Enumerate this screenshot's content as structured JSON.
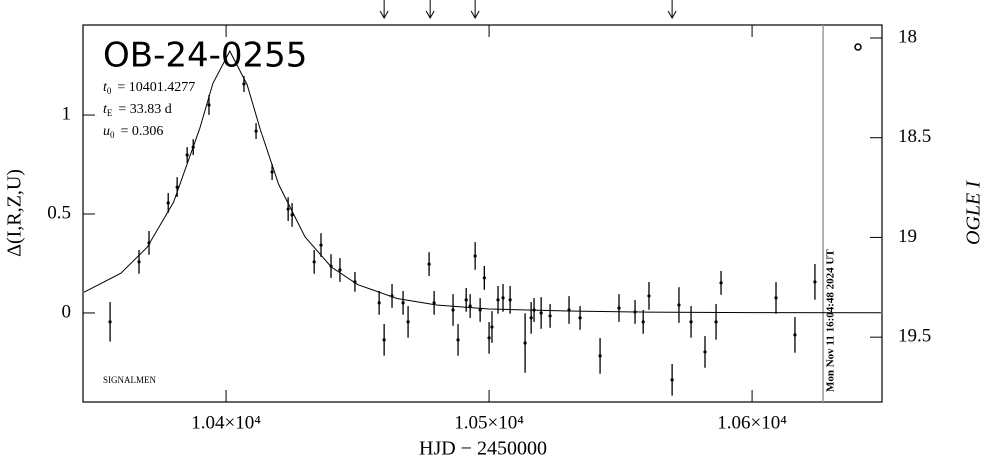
{
  "chart_data": {
    "type": "scatter",
    "title": "OB-24-0255",
    "params": [
      {
        "name": "t",
        "sub": "0",
        "text": "= 10401.4277"
      },
      {
        "name": "t",
        "sub": "E",
        "text": "= 33.83 d"
      },
      {
        "name": "u",
        "sub": "0",
        "text": "= 0.306"
      }
    ],
    "credit": "SIGNALMEN",
    "timestamp": "Mon Nov 11 16:04:48 2024 UT",
    "timestamp_x": 10627.0,
    "x_label": "HJD − 2450000",
    "y_label": "Δ(I,R,Z,U)",
    "y2_label": "OGLE I",
    "xlim": [
      10345.6,
      10649.4
    ],
    "ylim": [
      -0.45,
      1.455
    ],
    "y2lim": [
      19.825,
      17.935
    ],
    "xticks": [
      {
        "value": 10400,
        "label": "1.04×10⁴"
      },
      {
        "value": 10500,
        "label": "1.05×10⁴"
      },
      {
        "value": 10600,
        "label": "1.06×10⁴"
      }
    ],
    "yticks": [
      0,
      0.5,
      1
    ],
    "y2ticks": [
      18,
      18.5,
      19,
      19.5
    ],
    "arrows": [
      10460.1,
      10477.6,
      10494.7,
      10569.6
    ],
    "model": {
      "color": "#000000",
      "x": [
        10346,
        10360,
        10370,
        10380,
        10390,
        10395,
        10401.43,
        10408,
        10413,
        10420,
        10430,
        10440,
        10450,
        10465,
        10480,
        10500,
        10530,
        10560,
        10600,
        10649
      ],
      "values": [
        0.105,
        0.201,
        0.332,
        0.559,
        0.933,
        1.16,
        1.323,
        1.154,
        0.927,
        0.649,
        0.385,
        0.232,
        0.143,
        0.073,
        0.04,
        0.02,
        0.01,
        0.0045,
        0.0018,
        0.0008
      ]
    },
    "series": [
      {
        "color": "#000000",
        "x": [
          10355.9,
          10366.9,
          10370.7,
          10378.0,
          10381.4,
          10385.2,
          10387.5,
          10393.5,
          10406.8,
          10411.4,
          10417.5,
          10423.6,
          10425.1,
          10433.5,
          10436.1,
          10439.9,
          10443.3,
          10449.0,
          10458.2,
          10460.1,
          10463.1,
          10467.3,
          10469.2,
          10477.2,
          10479.1,
          10486.3,
          10488.2,
          10491.3,
          10492.8,
          10494.7,
          10496.6,
          10498.2,
          10500.0,
          10501.1,
          10503.4,
          10505.3,
          10508.0,
          10513.7,
          10516.0,
          10517.1,
          10519.8,
          10523.2,
          10530.4,
          10534.6,
          10542.2,
          10549.4,
          10555.5,
          10558.6,
          10560.8,
          10569.6,
          10572.2,
          10576.8,
          10582.1,
          10586.3,
          10588.2,
          10609.1,
          10616.3,
          10623.9
        ],
        "values": [
          -0.045,
          0.258,
          0.354,
          0.556,
          0.636,
          0.798,
          0.838,
          1.051,
          1.157,
          0.919,
          0.712,
          0.525,
          0.495,
          0.258,
          0.343,
          0.237,
          0.217,
          0.157,
          0.051,
          -0.136,
          0.086,
          0.051,
          -0.045,
          0.247,
          0.051,
          0.015,
          -0.136,
          0.066,
          0.035,
          0.288,
          0.015,
          0.177,
          -0.126,
          -0.071,
          0.066,
          0.076,
          0.066,
          -0.152,
          -0.025,
          0.015,
          0.0,
          -0.015,
          0.015,
          -0.025,
          -0.217,
          0.025,
          0.005,
          -0.045,
          0.086,
          -0.338,
          0.04,
          -0.045,
          -0.197,
          -0.045,
          0.152,
          0.076,
          -0.111,
          0.157
        ],
        "errors": [
          0.1,
          0.06,
          0.06,
          0.05,
          0.05,
          0.04,
          0.04,
          0.05,
          0.04,
          0.04,
          0.04,
          0.06,
          0.06,
          0.06,
          0.06,
          0.06,
          0.06,
          0.05,
          0.06,
          0.08,
          0.06,
          0.06,
          0.08,
          0.06,
          0.06,
          0.08,
          0.08,
          0.06,
          0.06,
          0.07,
          0.06,
          0.06,
          0.08,
          0.08,
          0.07,
          0.07,
          0.07,
          0.15,
          0.08,
          0.06,
          0.08,
          0.06,
          0.07,
          0.06,
          0.09,
          0.07,
          0.06,
          0.06,
          0.07,
          0.08,
          0.09,
          0.08,
          0.08,
          0.09,
          0.06,
          0.08,
          0.09,
          0.09
        ]
      }
    ]
  }
}
